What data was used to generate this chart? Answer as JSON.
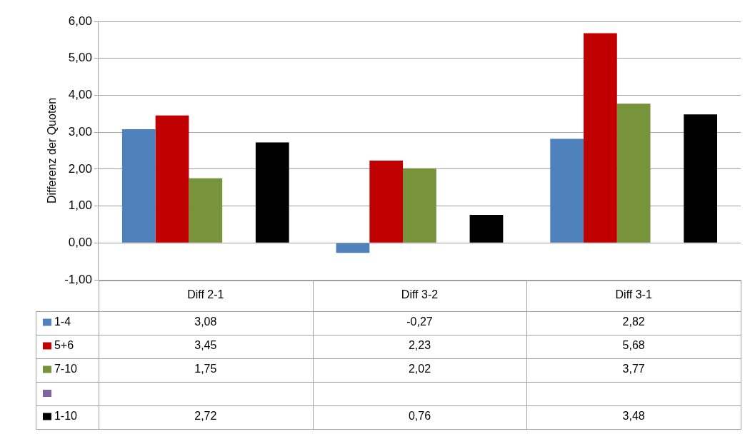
{
  "chart_data": {
    "type": "bar",
    "ylabel": "Differenz der Quoten",
    "categories": [
      "Diff 2-1",
      "Diff 3-2",
      "Diff 3-1"
    ],
    "series": [
      {
        "name": "1-4",
        "color": "#4f81bd",
        "values": [
          3.08,
          -0.27,
          2.82
        ],
        "value_labels": [
          "3,08",
          "-0,27",
          "2,82"
        ]
      },
      {
        "name": "5+6",
        "color": "#c00000",
        "values": [
          3.45,
          2.23,
          5.68
        ],
        "value_labels": [
          "3,45",
          "2,23",
          "5,68"
        ]
      },
      {
        "name": "7-10",
        "color": "#77933c",
        "values": [
          1.75,
          2.02,
          3.77
        ],
        "value_labels": [
          "1,75",
          "2,02",
          "3,77"
        ]
      },
      {
        "color": "#8064a2",
        "values": [
          null,
          null,
          null
        ]
      },
      {
        "name": "1-10",
        "color": "#000000",
        "values": [
          2.72,
          0.76,
          3.48
        ],
        "value_labels": [
          "2,72",
          "0,76",
          "3,48"
        ]
      }
    ],
    "ylim": [
      -1,
      6
    ],
    "yticks": [
      {
        "value": -1,
        "label": "-1,00"
      },
      {
        "value": 0,
        "label": "0,00"
      },
      {
        "value": 1,
        "label": "1,00"
      },
      {
        "value": 2,
        "label": "2,00"
      },
      {
        "value": 3,
        "label": "3,00"
      },
      {
        "value": 4,
        "label": "4,00"
      },
      {
        "value": 5,
        "label": "5,00"
      },
      {
        "value": 6,
        "label": "6,00"
      }
    ],
    "grid": "y",
    "legend": "bottom"
  }
}
